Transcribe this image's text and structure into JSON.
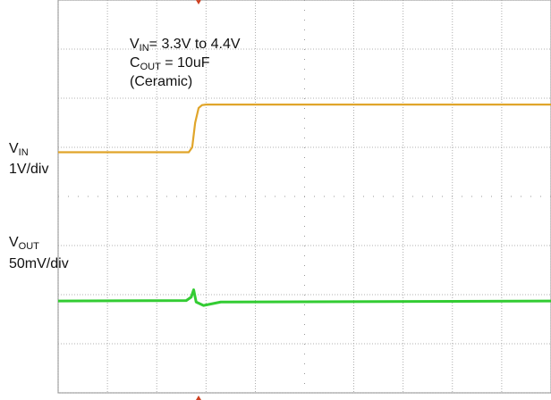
{
  "chart_data": {
    "type": "line",
    "xlim": [
      0,
      10
    ],
    "ylim": [
      0,
      8
    ],
    "xticks": [
      0,
      1,
      2,
      3,
      4,
      5,
      6,
      7,
      8,
      9,
      10
    ],
    "yticks": [
      0,
      1,
      2,
      3,
      4,
      5,
      6,
      7,
      8
    ],
    "grid": true,
    "annotations": [
      [
        {
          "text": "V"
        },
        {
          "text": "IN",
          "sub": true
        },
        {
          "text": "= 3.3V to 4.4V"
        }
      ],
      [
        {
          "text": "C"
        },
        {
          "text": "OUT",
          "sub": true
        },
        {
          "text": " = 10uF"
        }
      ],
      [
        {
          "text": "(Ceramic)"
        }
      ]
    ],
    "series": [
      {
        "name": "V",
        "name_sub": "IN",
        "scale": "1V/div",
        "color": "#e0a52a",
        "x": [
          0,
          2.65,
          2.72,
          2.78,
          2.85,
          2.92,
          3.0,
          10
        ],
        "values": [
          4.9,
          4.9,
          5.0,
          5.5,
          5.8,
          5.86,
          5.87,
          5.87
        ]
      },
      {
        "name": "V",
        "name_sub": "OUT",
        "scale": "50mV/div",
        "color": "#33cc33",
        "x": [
          0,
          2.6,
          2.7,
          2.75,
          2.8,
          2.95,
          3.3,
          10
        ],
        "values": [
          1.87,
          1.88,
          1.95,
          2.1,
          1.85,
          1.78,
          1.85,
          1.87
        ]
      }
    ]
  }
}
